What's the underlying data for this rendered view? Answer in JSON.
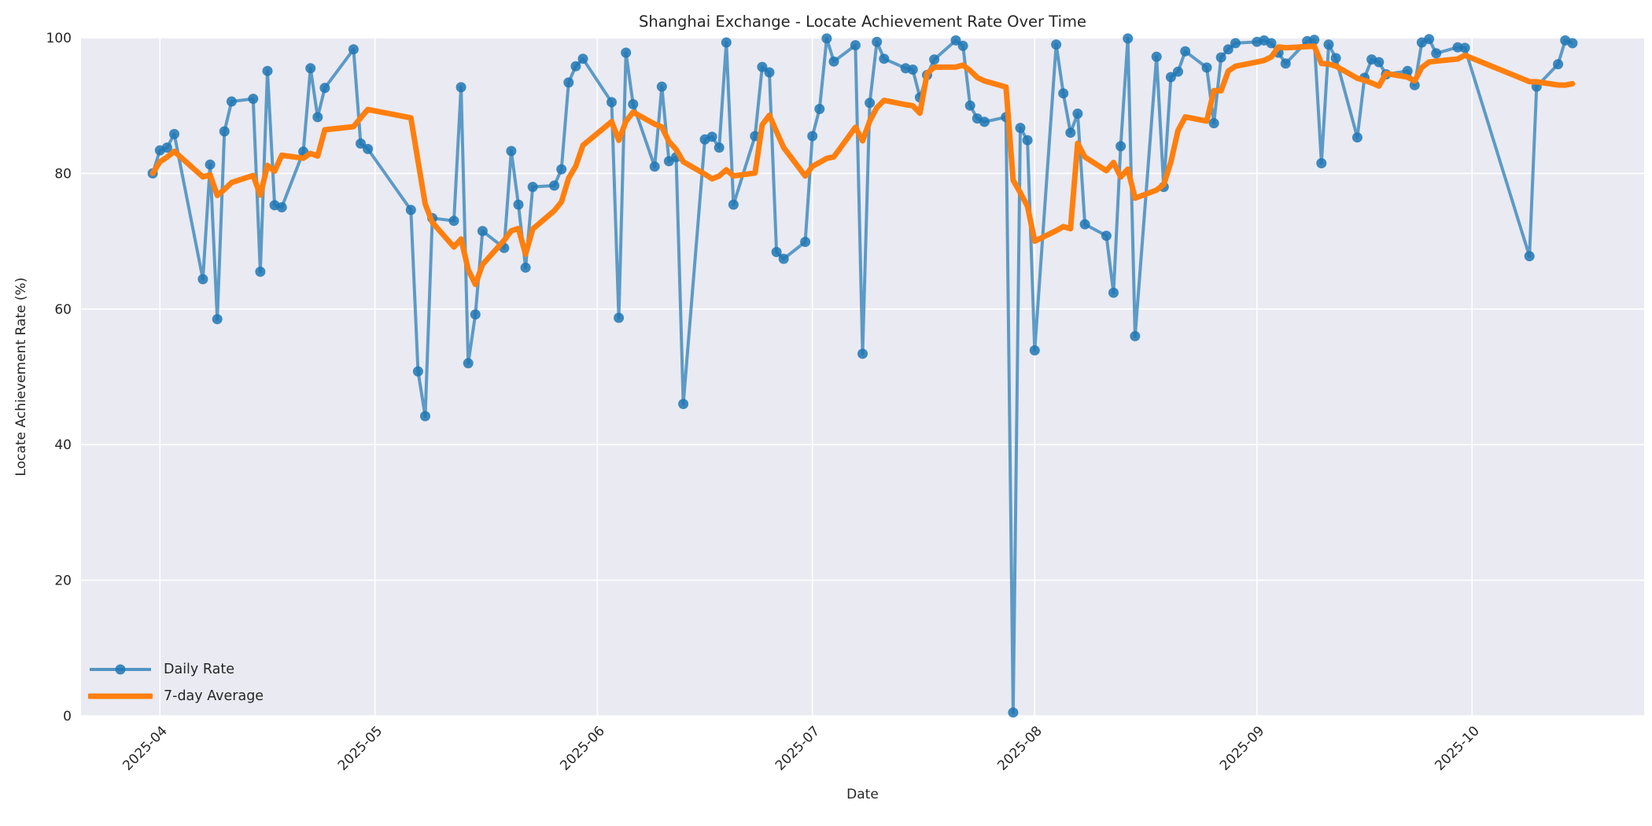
{
  "chart": {
    "title": "Shanghai Exchange - Locate Achievement Rate Over Time",
    "xlabel": "Date",
    "ylabel": "Locate Achievement Rate (%)",
    "plot_bg_color": "#eaeaf2",
    "grid_color": "#ffffff",
    "text_color": "#262626",
    "legend": {
      "items": [
        {
          "label": "Daily Rate",
          "color": "#1f77b4",
          "style": "line-with-marker"
        },
        {
          "label": "7-day Average",
          "color": "#ff7f0e",
          "style": "thick-line"
        }
      ]
    }
  },
  "chart_data": {
    "type": "line",
    "title": "Shanghai Exchange - Locate Achievement Rate Over Time",
    "xlabel": "Date",
    "ylabel": "Locate Achievement Rate (%)",
    "ylim": [
      0,
      100
    ],
    "y_ticks": [
      0,
      20,
      40,
      60,
      80,
      100
    ],
    "x_ticks": [
      "2025-04",
      "2025-05",
      "2025-06",
      "2025-07",
      "2025-08",
      "2025-09",
      "2025-10"
    ],
    "xlim": [
      "2025-03-21",
      "2025-10-25"
    ],
    "grid": true,
    "legend_position": "lower left",
    "series": [
      {
        "name": "Daily Rate",
        "color": "#1f77b4",
        "opacity": 0.7,
        "marker": "circle",
        "dates": [
          "2025-03-31",
          "2025-04-01",
          "2025-04-02",
          "2025-04-03",
          "2025-04-07",
          "2025-04-08",
          "2025-04-09",
          "2025-04-10",
          "2025-04-11",
          "2025-04-14",
          "2025-04-15",
          "2025-04-16",
          "2025-04-17",
          "2025-04-18",
          "2025-04-21",
          "2025-04-22",
          "2025-04-23",
          "2025-04-24",
          "2025-04-28",
          "2025-04-29",
          "2025-04-30",
          "2025-05-06",
          "2025-05-07",
          "2025-05-08",
          "2025-05-09",
          "2025-05-12",
          "2025-05-13",
          "2025-05-14",
          "2025-05-15",
          "2025-05-16",
          "2025-05-19",
          "2025-05-20",
          "2025-05-21",
          "2025-05-22",
          "2025-05-23",
          "2025-05-26",
          "2025-05-27",
          "2025-05-28",
          "2025-05-29",
          "2025-05-30",
          "2025-06-03",
          "2025-06-04",
          "2025-06-05",
          "2025-06-06",
          "2025-06-09",
          "2025-06-10",
          "2025-06-11",
          "2025-06-12",
          "2025-06-13",
          "2025-06-16",
          "2025-06-17",
          "2025-06-18",
          "2025-06-19",
          "2025-06-20",
          "2025-06-23",
          "2025-06-24",
          "2025-06-25",
          "2025-06-26",
          "2025-06-27",
          "2025-06-30",
          "2025-07-01",
          "2025-07-02",
          "2025-07-03",
          "2025-07-04",
          "2025-07-07",
          "2025-07-08",
          "2025-07-09",
          "2025-07-10",
          "2025-07-11",
          "2025-07-14",
          "2025-07-15",
          "2025-07-16",
          "2025-07-17",
          "2025-07-18",
          "2025-07-21",
          "2025-07-22",
          "2025-07-23",
          "2025-07-24",
          "2025-07-25",
          "2025-07-28",
          "2025-07-29",
          "2025-07-30",
          "2025-07-31",
          "2025-08-01",
          "2025-08-04",
          "2025-08-05",
          "2025-08-06",
          "2025-08-07",
          "2025-08-08",
          "2025-08-11",
          "2025-08-12",
          "2025-08-13",
          "2025-08-14",
          "2025-08-15",
          "2025-08-18",
          "2025-08-19",
          "2025-08-20",
          "2025-08-21",
          "2025-08-22",
          "2025-08-25",
          "2025-08-26",
          "2025-08-27",
          "2025-08-28",
          "2025-08-29",
          "2025-09-01",
          "2025-09-02",
          "2025-09-03",
          "2025-09-04",
          "2025-09-05",
          "2025-09-08",
          "2025-09-09",
          "2025-09-10",
          "2025-09-11",
          "2025-09-12",
          "2025-09-15",
          "2025-09-16",
          "2025-09-17",
          "2025-09-18",
          "2025-09-19",
          "2025-09-22",
          "2025-09-23",
          "2025-09-24",
          "2025-09-25",
          "2025-09-26",
          "2025-09-29",
          "2025-09-30",
          "2025-10-09",
          "2025-10-10",
          "2025-10-13",
          "2025-10-14",
          "2025-10-15"
        ],
        "values": [
          80.0,
          83.4,
          83.8,
          85.8,
          64.4,
          81.3,
          58.5,
          86.2,
          90.6,
          91.0,
          65.5,
          95.1,
          75.3,
          75.0,
          83.2,
          95.5,
          88.3,
          92.6,
          98.3,
          84.4,
          83.6,
          74.6,
          50.8,
          44.2,
          73.4,
          73.0,
          92.7,
          52.0,
          59.2,
          71.5,
          69.0,
          83.3,
          75.4,
          66.1,
          78.0,
          78.2,
          80.6,
          93.4,
          95.8,
          96.9,
          90.5,
          58.7,
          97.8,
          90.2,
          81.0,
          92.8,
          81.8,
          82.4,
          46.0,
          85.0,
          85.4,
          83.8,
          99.3,
          75.4,
          85.5,
          95.7,
          94.9,
          68.4,
          67.4,
          69.9,
          85.5,
          89.5,
          99.9,
          96.5,
          98.9,
          53.4,
          90.4,
          99.4,
          96.9,
          95.5,
          95.3,
          91.2,
          94.5,
          96.8,
          99.6,
          98.8,
          90.0,
          88.1,
          87.6,
          88.3,
          0.5,
          86.7,
          84.9,
          53.9,
          99.0,
          91.8,
          86.0,
          88.8,
          72.5,
          70.8,
          62.4,
          84.0,
          99.9,
          56.0,
          97.2,
          78.0,
          94.2,
          95.0,
          98.0,
          95.6,
          87.4,
          97.1,
          98.3,
          99.2,
          99.4,
          99.6,
          99.2,
          97.8,
          96.2,
          99.5,
          99.7,
          81.5,
          99.0,
          97.0,
          85.3,
          94.1,
          96.8,
          96.4,
          94.6,
          95.1,
          93.0,
          99.3,
          99.8,
          97.7,
          98.6,
          98.5,
          67.8,
          92.8,
          96.1,
          99.6,
          99.2
        ]
      },
      {
        "name": "7-day Average",
        "color": "#ff7f0e",
        "derived": "rolling mean of Daily Rate over last 7 observations, min_periods 1"
      }
    ]
  }
}
